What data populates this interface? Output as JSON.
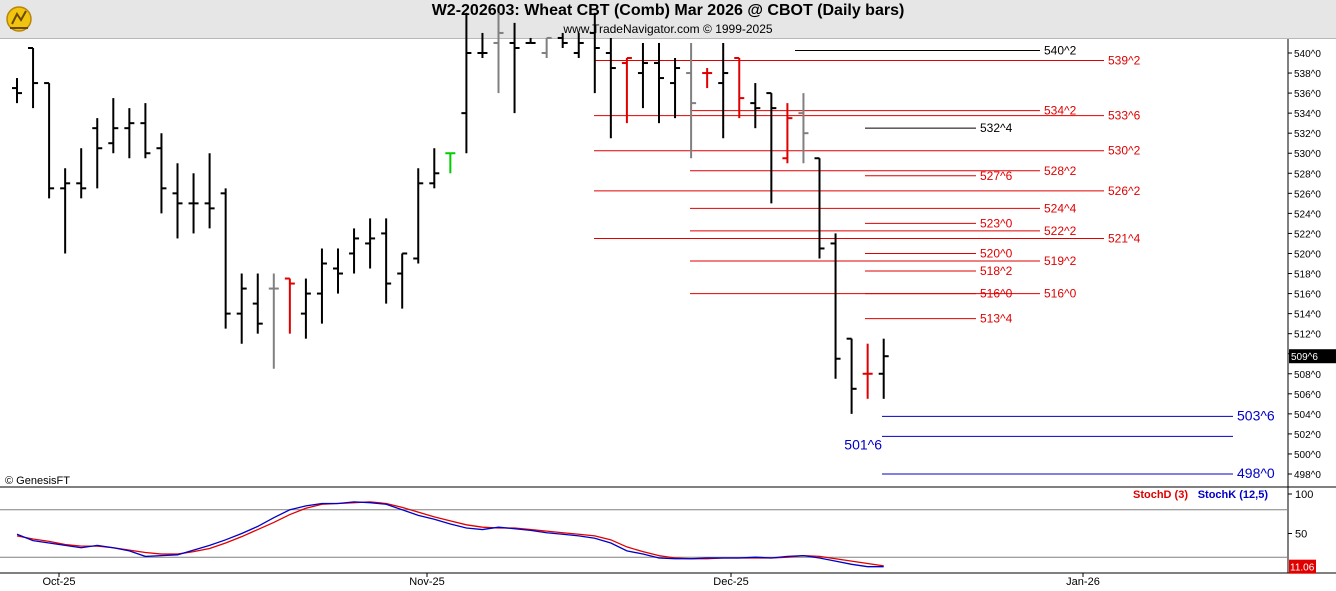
{
  "header": {
    "title": "W2-202603:  Wheat CBT (Comb) Mar 2026 @ CBOT  (Daily bars)",
    "subtitle": "www.TradeNavigator.com © 1999-2025",
    "logo_icon": "trading-logo-icon"
  },
  "copyright": "© GenesisFT",
  "colors": {
    "bar_black": "#000000",
    "bar_red": "#e00000",
    "bar_gray": "#808080",
    "bar_green": "#00cc00",
    "level_red": "#e00000",
    "level_black": "#000000",
    "level_blue": "#0000c8",
    "stochd": "#e00000",
    "stochk": "#0000c8",
    "background": "#ffffff",
    "header_bg": "#e6e6e6"
  },
  "chart_data": [
    {
      "type": "ohlc",
      "title": "W2-202603:  Wheat CBT (Comb) Mar 2026 @ CBOT  (Daily bars)",
      "ylim": [
        497,
        543
      ],
      "y_ticks": [
        "540^0",
        "538^0",
        "536^0",
        "534^0",
        "532^0",
        "530^0",
        "528^0",
        "526^0",
        "524^0",
        "522^0",
        "520^0",
        "518^0",
        "516^0",
        "514^0",
        "512^0",
        "510^0",
        "508^0",
        "506^0",
        "504^0",
        "502^0",
        "500^0",
        "498^0"
      ],
      "y_tick_values": [
        540,
        538,
        536,
        534,
        532,
        530,
        528,
        526,
        524,
        522,
        520,
        518,
        516,
        514,
        512,
        510,
        508,
        506,
        504,
        502,
        500,
        498
      ],
      "x_labels": [
        "Oct-25",
        "Nov-25",
        "Dec-25",
        "Jan-26"
      ],
      "last_price_label": "509^6",
      "last_price": 509.75,
      "bars": [
        {
          "c": "black",
          "o": 536.5,
          "h": 537.5,
          "l": 535.0,
          "cl": 536.0
        },
        {
          "c": "black",
          "o": 540.5,
          "h": 540.0,
          "l": 534.5,
          "cl": 537.0
        },
        {
          "c": "black",
          "o": 537.0,
          "h": 536.5,
          "l": 525.5,
          "cl": 526.5
        },
        {
          "c": "black",
          "o": 526.5,
          "h": 528.5,
          "l": 520.0,
          "cl": 527.0
        },
        {
          "c": "black",
          "o": 527.0,
          "h": 530.5,
          "l": 525.5,
          "cl": 526.5
        },
        {
          "c": "black",
          "o": 532.5,
          "h": 533.5,
          "l": 526.5,
          "cl": 530.5
        },
        {
          "c": "black",
          "o": 531.0,
          "h": 535.5,
          "l": 530.0,
          "cl": 532.5
        },
        {
          "c": "black",
          "o": 532.5,
          "h": 534.5,
          "l": 529.5,
          "cl": 533.0
        },
        {
          "c": "black",
          "o": 533.0,
          "h": 535.0,
          "l": 529.5,
          "cl": 530.0
        },
        {
          "c": "black",
          "o": 530.5,
          "h": 532.0,
          "l": 524.0,
          "cl": 526.5
        },
        {
          "c": "black",
          "o": 526.0,
          "h": 529.0,
          "l": 521.5,
          "cl": 525.0
        },
        {
          "c": "black",
          "o": 525.0,
          "h": 528.0,
          "l": 522.0,
          "cl": 525.0
        },
        {
          "c": "black",
          "o": 525.0,
          "h": 530.0,
          "l": 522.5,
          "cl": 524.5
        },
        {
          "c": "black",
          "o": 526.0,
          "h": 526.5,
          "l": 512.5,
          "cl": 514.0
        },
        {
          "c": "black",
          "o": 514.0,
          "h": 518.0,
          "l": 511.0,
          "cl": 516.5
        },
        {
          "c": "black",
          "o": 515.0,
          "h": 518.0,
          "l": 512.0,
          "cl": 513.0
        },
        {
          "c": "gray",
          "o": 516.5,
          "h": 518.0,
          "l": 508.5,
          "cl": 516.5
        },
        {
          "c": "red",
          "o": 517.5,
          "h": 517.5,
          "l": 512.0,
          "cl": 517.0
        },
        {
          "c": "black",
          "o": 514.0,
          "h": 517.5,
          "l": 511.5,
          "cl": 516.0
        },
        {
          "c": "black",
          "o": 516.0,
          "h": 520.5,
          "l": 513.0,
          "cl": 519.0
        },
        {
          "c": "black",
          "o": 518.5,
          "h": 520.5,
          "l": 516.0,
          "cl": 518.0
        },
        {
          "c": "black",
          "o": 520.0,
          "h": 522.5,
          "l": 518.0,
          "cl": 521.5
        },
        {
          "c": "black",
          "o": 521.0,
          "h": 523.5,
          "l": 518.5,
          "cl": 521.5
        },
        {
          "c": "black",
          "o": 522.0,
          "h": 523.5,
          "l": 515.0,
          "cl": 517.0
        },
        {
          "c": "black",
          "o": 518.0,
          "h": 519.5,
          "l": 514.5,
          "cl": 520.0
        },
        {
          "c": "black",
          "o": 519.5,
          "h": 528.5,
          "l": 519.0,
          "cl": 527.0
        },
        {
          "c": "black",
          "o": 527.0,
          "h": 530.5,
          "l": 526.5,
          "cl": 528.0
        },
        {
          "c": "green",
          "o": 530.0,
          "h": 530.0,
          "l": 528.0,
          "cl": 530.0
        },
        {
          "c": "black",
          "o": 534.0,
          "h": 544.0,
          "l": 530.0,
          "cl": 540.0
        },
        {
          "c": "black",
          "o": 540.0,
          "h": 542.0,
          "l": 539.5,
          "cl": 540.0
        },
        {
          "c": "gray",
          "o": 541.0,
          "h": 544.0,
          "l": 536.0,
          "cl": 542.0
        },
        {
          "c": "black",
          "o": 541.0,
          "h": 543.0,
          "l": 534.0,
          "cl": 540.5
        },
        {
          "c": "black",
          "o": 541.0,
          "h": 541.5,
          "l": 541.0,
          "cl": 541.0
        },
        {
          "c": "gray",
          "o": 540.0,
          "h": 541.0,
          "l": 539.5,
          "cl": 541.5
        },
        {
          "c": "black",
          "o": 541.5,
          "h": 542.0,
          "l": 540.5,
          "cl": 541.0
        },
        {
          "c": "black",
          "o": 540.0,
          "h": 542.0,
          "l": 539.5,
          "cl": 541.0
        },
        {
          "c": "black",
          "o": 542.0,
          "h": 544.0,
          "l": 536.0,
          "cl": 540.5
        },
        {
          "c": "black",
          "o": 540.0,
          "h": 541.5,
          "l": 531.5,
          "cl": 538.5
        },
        {
          "c": "red",
          "o": 539.0,
          "h": 539.0,
          "l": 533.0,
          "cl": 539.5
        },
        {
          "c": "black",
          "o": 538.0,
          "h": 541.0,
          "l": 534.5,
          "cl": 539.0
        },
        {
          "c": "black",
          "o": 539.0,
          "h": 541.0,
          "l": 533.0,
          "cl": 537.5
        },
        {
          "c": "black",
          "o": 537.0,
          "h": 539.5,
          "l": 533.5,
          "cl": 538.5
        },
        {
          "c": "gray",
          "o": 538.0,
          "h": 541.0,
          "l": 529.5,
          "cl": 535.0
        },
        {
          "c": "red",
          "o": 538.0,
          "h": 538.5,
          "l": 536.5,
          "cl": 538.0
        },
        {
          "c": "black",
          "o": 537.0,
          "h": 541.0,
          "l": 531.5,
          "cl": 538.0
        },
        {
          "c": "red",
          "o": 539.5,
          "h": 539.0,
          "l": 533.5,
          "cl": 535.5
        },
        {
          "c": "black",
          "o": 535.0,
          "h": 537.0,
          "l": 532.5,
          "cl": 534.5
        },
        {
          "c": "black",
          "o": 536.0,
          "h": 536.0,
          "l": 525.0,
          "cl": 534.5
        },
        {
          "c": "red",
          "o": 529.5,
          "h": 535.0,
          "l": 529.0,
          "cl": 533.5
        },
        {
          "c": "gray",
          "o": 534.0,
          "h": 536.0,
          "l": 529.0,
          "cl": 532.0
        },
        {
          "c": "black",
          "o": 529.5,
          "h": 529.5,
          "l": 519.5,
          "cl": 520.5
        },
        {
          "c": "black",
          "o": 521.0,
          "h": 522.0,
          "l": 507.5,
          "cl": 509.5
        },
        {
          "c": "black",
          "o": 511.5,
          "h": 511.5,
          "l": 504.0,
          "cl": 506.5
        },
        {
          "c": "red",
          "o": 508.0,
          "h": 511.0,
          "l": 505.5,
          "cl": 508.0
        },
        {
          "c": "black",
          "o": 508.0,
          "h": 511.5,
          "l": 505.5,
          "cl": 509.75
        }
      ],
      "levels": [
        {
          "label": "540^2",
          "value": 540.25,
          "color": "black"
        },
        {
          "label": "539^2",
          "value": 539.25,
          "color": "red"
        },
        {
          "label": "534^2",
          "value": 534.25,
          "color": "red"
        },
        {
          "label": "533^6",
          "value": 533.75,
          "color": "red"
        },
        {
          "label": "532^4",
          "value": 532.5,
          "color": "black"
        },
        {
          "label": "530^2",
          "value": 530.25,
          "color": "red"
        },
        {
          "label": "528^2",
          "value": 528.25,
          "color": "red"
        },
        {
          "label": "527^6",
          "value": 527.75,
          "color": "red"
        },
        {
          "label": "526^2",
          "value": 526.25,
          "color": "red"
        },
        {
          "label": "524^4",
          "value": 524.5,
          "color": "red"
        },
        {
          "label": "523^0",
          "value": 523.0,
          "color": "red"
        },
        {
          "label": "522^2",
          "value": 522.25,
          "color": "red"
        },
        {
          "label": "521^4",
          "value": 521.5,
          "color": "red"
        },
        {
          "label": "520^0",
          "value": 520.0,
          "color": "red"
        },
        {
          "label": "519^2",
          "value": 519.25,
          "color": "red"
        },
        {
          "label": "518^2",
          "value": 518.25,
          "color": "red"
        },
        {
          "label": "516^0",
          "value": 516.0,
          "color": "red"
        },
        {
          "label": "516^0",
          "value": 516.0,
          "color": "red"
        },
        {
          "label": "513^4",
          "value": 513.5,
          "color": "red"
        },
        {
          "label": "503^6",
          "value": 503.75,
          "color": "blue"
        },
        {
          "label": "501^6",
          "value": 501.75,
          "color": "blue"
        },
        {
          "label": "498^0",
          "value": 498.0,
          "color": "blue"
        }
      ]
    },
    {
      "type": "line",
      "ylim": [
        0,
        100
      ],
      "y_ticks": [
        "100",
        "50",
        "0"
      ],
      "y_tick_values": [
        100,
        50,
        0
      ],
      "reference_lines": [
        80,
        20
      ],
      "last_value_label": "11.06",
      "series": [
        {
          "name": "StochD (3)",
          "color": "red",
          "values": [
            47,
            43,
            40,
            36,
            34,
            34,
            32,
            29,
            26,
            24,
            24,
            27,
            31,
            38,
            46,
            55,
            64,
            74,
            82,
            87,
            88,
            89,
            90,
            88,
            83,
            77,
            71,
            66,
            61,
            58,
            57,
            57,
            55,
            53,
            51,
            49,
            47,
            42,
            33,
            27,
            22,
            19,
            18,
            18,
            19,
            19,
            19,
            19,
            20,
            22,
            21,
            18,
            15,
            12,
            9
          ]
        },
        {
          "name": "StochK (12,5)",
          "color": "blue",
          "values": [
            49,
            41,
            38,
            35,
            32,
            35,
            32,
            28,
            21,
            22,
            23,
            29,
            35,
            42,
            50,
            59,
            70,
            80,
            85,
            88,
            88,
            90,
            89,
            87,
            80,
            73,
            68,
            62,
            57,
            55,
            58,
            56,
            54,
            51,
            49,
            47,
            44,
            38,
            28,
            24,
            19,
            18,
            18,
            19,
            19,
            19,
            20,
            19,
            21,
            22,
            19,
            15,
            11,
            8,
            8
          ]
        }
      ]
    }
  ],
  "legend": {
    "stochd_label": "StochD (3)",
    "stochk_label": "StochK (12,5)"
  }
}
